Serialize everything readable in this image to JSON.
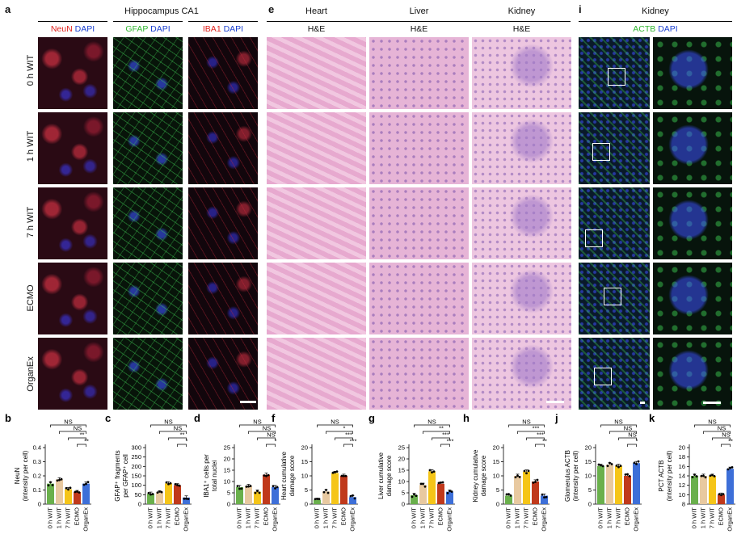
{
  "panels": {
    "a": "a",
    "e": "e",
    "i": "i",
    "b": "b",
    "c": "c",
    "d": "d",
    "f": "f",
    "g": "g",
    "h": "h",
    "j": "j",
    "k": "k"
  },
  "headers": {
    "hippocampus": "Hippocampus CA1",
    "heart": "Heart",
    "liver": "Liver",
    "kidney": "Kidney",
    "kidney_i": "Kidney",
    "he": "H&E",
    "neun": "NeuN",
    "gfap": "GFAP",
    "iba1": "IBA1",
    "dapi": "DAPI",
    "actb": "ACTB"
  },
  "rows": [
    "0 h WIT",
    "1 h WIT",
    "7 h WIT",
    "ECMO",
    "OrganEx"
  ],
  "colors": {
    "wit0": "#6ab04c",
    "wit1": "#e8c9a0",
    "wit7": "#f5c518",
    "ecmo": "#c0391b",
    "organex": "#3d6fd8",
    "neun": "#e0201c",
    "gfap": "#2fb52f",
    "iba1": "#e0201c",
    "dapi": "#1a3fd0",
    "actb": "#2fb52f"
  },
  "chart_data": [
    {
      "id": "b",
      "type": "bar",
      "categories": [
        "0 h WIT",
        "1 h WIT",
        "7 h WIT",
        "ECMO",
        "OrganEx"
      ],
      "values": [
        0.145,
        0.175,
        0.105,
        0.085,
        0.145
      ],
      "ylabel": "NeuN\n(intensity per cell)",
      "ylim": [
        0,
        0.4
      ],
      "yticks": [
        "0",
        "0.1",
        "0.2",
        "0.3",
        "0.4"
      ],
      "sig": [
        "NS",
        "NS",
        "**",
        "**"
      ]
    },
    {
      "id": "c",
      "type": "bar",
      "categories": [
        "0 h WIT",
        "1 h WIT",
        "7 h WIT",
        "ECMO",
        "OrganEx"
      ],
      "values": [
        55,
        62,
        110,
        100,
        35
      ],
      "ylabel": "GFAP⁺ fragments\nper GFAP⁺ cell",
      "ylim": [
        0,
        300
      ],
      "yticks": [
        "0",
        "50",
        "100",
        "150",
        "200",
        "250",
        "300"
      ],
      "sig": [
        "NS",
        "NS",
        "**",
        "*"
      ]
    },
    {
      "id": "d",
      "type": "bar",
      "categories": [
        "0 h WIT",
        "1 h WIT",
        "7 h WIT",
        "ECMO",
        "OrganEx"
      ],
      "values": [
        7.5,
        8.0,
        5.5,
        13.0,
        7.5
      ],
      "ylabel": "IBA1⁺ cells per\ntotal nuclei",
      "ylim": [
        0,
        25
      ],
      "yticks": [
        "0",
        "5",
        "10",
        "15",
        "20",
        "25"
      ],
      "sig": [
        "NS",
        "NS",
        "NS",
        "*"
      ]
    },
    {
      "id": "f",
      "type": "bar",
      "categories": [
        "0 h WIT",
        "1 h WIT",
        "7 h WIT",
        "ECMO",
        "OrganEx"
      ],
      "values": [
        1.5,
        4.5,
        11.0,
        10.0,
        2.5
      ],
      "ylabel": "Heart cumulative\ndamage score",
      "ylim": [
        0,
        20
      ],
      "yticks": [
        "0",
        "5",
        "10",
        "15",
        "20"
      ],
      "sig": [
        "NS",
        "*",
        "***",
        "***"
      ]
    },
    {
      "id": "g",
      "type": "bar",
      "categories": [
        "0 h WIT",
        "1 h WIT",
        "7 h WIT",
        "ECMO",
        "OrganEx"
      ],
      "values": [
        4.0,
        8.5,
        14.5,
        9.0,
        5.5
      ],
      "ylabel": "Liver cumulative\ndamage score",
      "ylim": [
        0,
        25
      ],
      "yticks": [
        "0",
        "5",
        "10",
        "15",
        "20",
        "25"
      ],
      "sig": [
        "NS",
        "**",
        "***",
        "***"
      ]
    },
    {
      "id": "h",
      "type": "bar",
      "categories": [
        "0 h WIT",
        "1 h WIT",
        "7 h WIT",
        "ECMO",
        "OrganEx"
      ],
      "values": [
        3.0,
        10.0,
        11.5,
        8.0,
        3.0
      ],
      "ylabel": "Kidney cumulative\ndamage score",
      "ylim": [
        0,
        20
      ],
      "yticks": [
        "0",
        "5",
        "10",
        "15",
        "20"
      ],
      "sig": [
        "NS",
        "***",
        "***",
        "**"
      ]
    },
    {
      "id": "j",
      "type": "bar",
      "categories": [
        "0 h WIT",
        "1 h WIT",
        "7 h WIT",
        "ECMO",
        "OrganEx"
      ],
      "values": [
        13.5,
        14.0,
        13.5,
        10.0,
        14.5
      ],
      "ylabel": "Glomerulus ACTB\n(intensity per cell)",
      "ylim": [
        0,
        20
      ],
      "yticks": [
        "0",
        "5",
        "10",
        "15",
        "20"
      ],
      "sig": [
        "NS",
        "NS",
        "NS",
        "*"
      ]
    },
    {
      "id": "k",
      "type": "bar",
      "categories": [
        "0 h WIT",
        "1 h WIT",
        "7 h WIT",
        "ECMO",
        "OrganEx"
      ],
      "values": [
        14.0,
        14.0,
        14.0,
        10.0,
        15.5
      ],
      "ylabel": "PCT ACTB\n(intensity per cell)",
      "ylim": [
        8,
        20
      ],
      "yticks": [
        "8",
        "10",
        "12",
        "14",
        "16",
        "18",
        "20"
      ],
      "sig": [
        "NS",
        "NS",
        "NS",
        "**"
      ]
    }
  ]
}
